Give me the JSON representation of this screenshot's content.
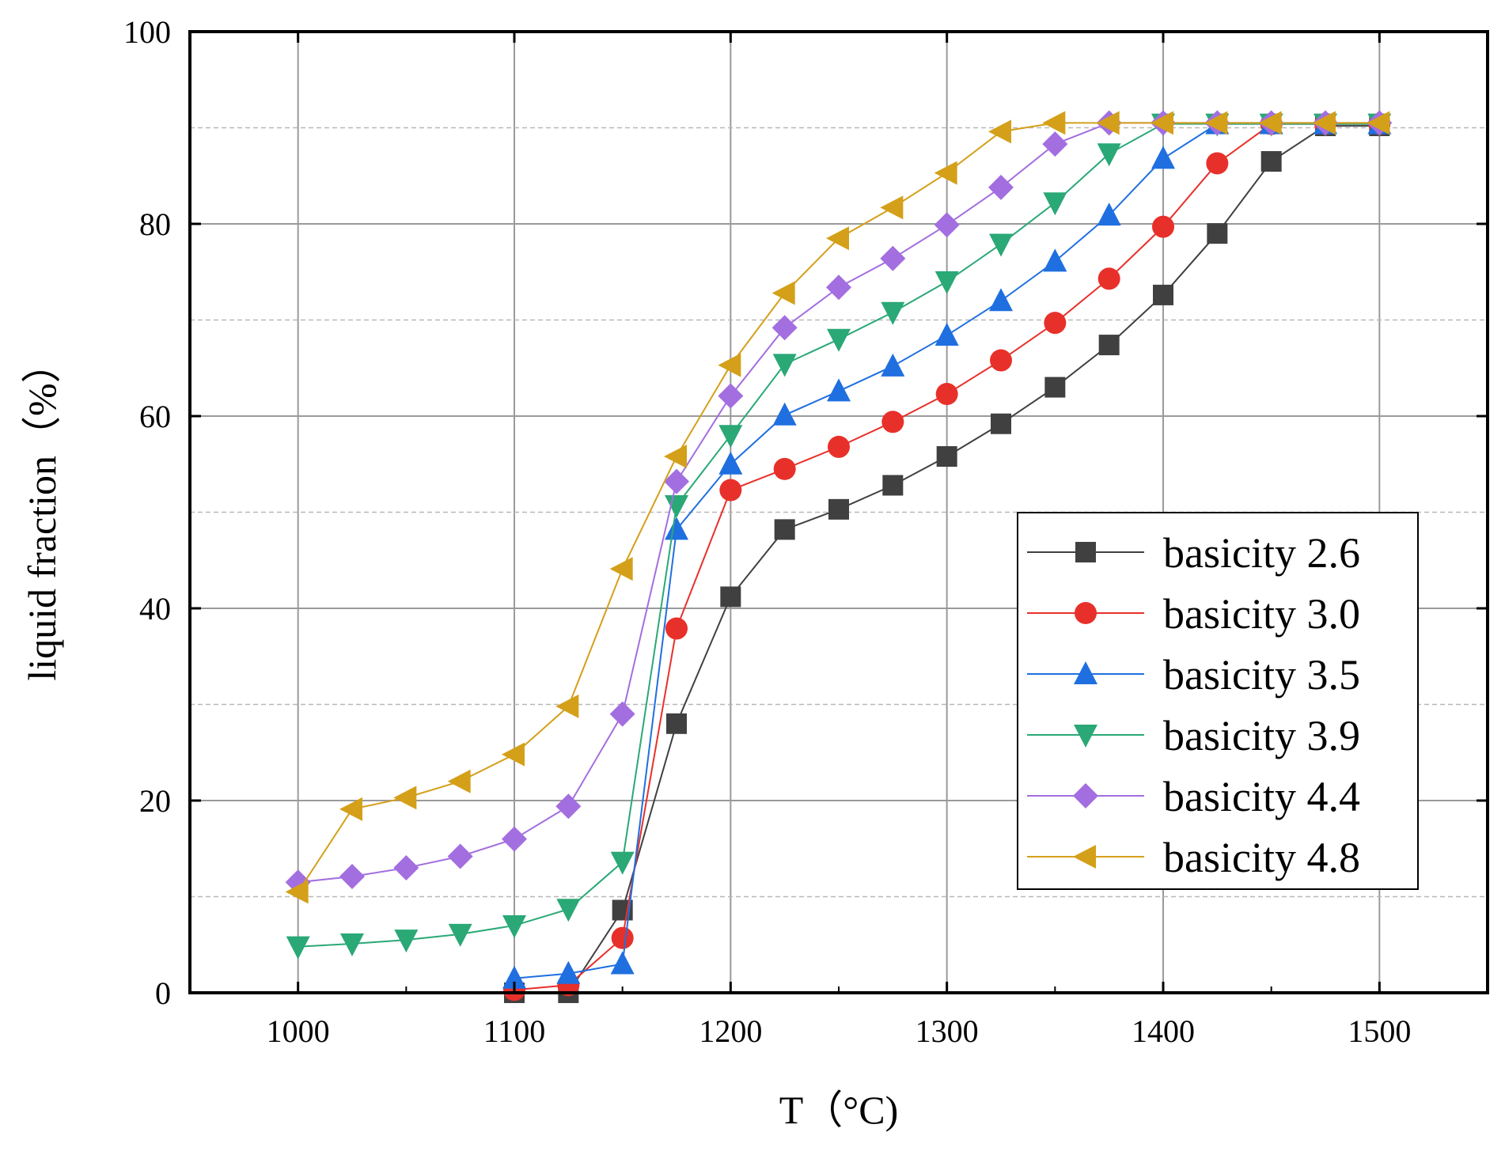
{
  "chart_data": {
    "type": "line",
    "title": "",
    "xlabel": "T（°C)",
    "ylabel": "liquid fraction（%）",
    "xlim": [
      950,
      1550
    ],
    "ylim": [
      0,
      100
    ],
    "xticks": [
      1000,
      1100,
      1200,
      1300,
      1400,
      1500
    ],
    "yticks": [
      0,
      20,
      40,
      60,
      80,
      100
    ],
    "x_tick_labels": [
      "1000",
      "1100",
      "1200",
      "1300",
      "1400",
      "1500"
    ],
    "y_tick_labels": [
      "0",
      "20",
      "40",
      "60",
      "80",
      "100"
    ],
    "grid": {
      "major": true,
      "minor_horizontal_dashed": true
    },
    "legend_position": "right-center",
    "series": [
      {
        "name": "basicity 2.6",
        "color": "#404040",
        "marker": "square",
        "x": [
          1100,
          1125,
          1150,
          1175,
          1200,
          1225,
          1250,
          1275,
          1300,
          1325,
          1350,
          1375,
          1400,
          1425,
          1450,
          1475,
          1500
        ],
        "y": [
          0.0,
          0.0,
          8.6,
          28.0,
          41.2,
          48.2,
          50.3,
          52.8,
          55.8,
          59.2,
          63.0,
          67.4,
          72.6,
          79.0,
          86.5,
          90.2,
          90.2
        ]
      },
      {
        "name": "basicity 3.0",
        "color": "#e8302a",
        "marker": "circle",
        "x": [
          1100,
          1125,
          1150,
          1175,
          1200,
          1225,
          1250,
          1275,
          1300,
          1325,
          1350,
          1375,
          1400,
          1425,
          1450,
          1475,
          1500
        ],
        "y": [
          0.3,
          0.8,
          5.7,
          37.9,
          52.3,
          54.5,
          56.8,
          59.4,
          62.3,
          65.8,
          69.7,
          74.3,
          79.7,
          86.3,
          90.4,
          90.4,
          90.4
        ]
      },
      {
        "name": "basicity 3.5",
        "color": "#1f6fe0",
        "marker": "triangle-up",
        "x": [
          1100,
          1125,
          1150,
          1175,
          1200,
          1225,
          1250,
          1275,
          1300,
          1325,
          1350,
          1375,
          1400,
          1425,
          1450,
          1475,
          1500
        ],
        "y": [
          1.5,
          2.0,
          3.0,
          48.2,
          55.0,
          60.1,
          62.6,
          65.2,
          68.4,
          72.0,
          76.1,
          80.9,
          86.8,
          90.4,
          90.4,
          90.4,
          90.4
        ]
      },
      {
        "name": "basicity 3.9",
        "color": "#2aa876",
        "marker": "triangle-down",
        "x": [
          1000,
          1025,
          1050,
          1075,
          1100,
          1125,
          1150,
          1175,
          1200,
          1225,
          1250,
          1275,
          1300,
          1325,
          1350,
          1375,
          1400,
          1425,
          1450,
          1475,
          1500
        ],
        "y": [
          4.8,
          5.1,
          5.5,
          6.1,
          7.0,
          8.7,
          13.6,
          50.7,
          58.0,
          65.4,
          68.0,
          70.8,
          74.0,
          77.9,
          82.2,
          87.3,
          90.4,
          90.4,
          90.4,
          90.4,
          90.4
        ]
      },
      {
        "name": "basicity 4.4",
        "color": "#a36ee0",
        "marker": "diamond",
        "x": [
          1000,
          1025,
          1050,
          1075,
          1100,
          1125,
          1150,
          1175,
          1200,
          1225,
          1250,
          1275,
          1300,
          1325,
          1350,
          1375,
          1400,
          1425,
          1450,
          1475,
          1500
        ],
        "y": [
          11.5,
          12.1,
          13.0,
          14.2,
          16.0,
          19.4,
          29.0,
          53.2,
          62.1,
          69.2,
          73.4,
          76.4,
          79.9,
          83.8,
          88.3,
          90.5,
          90.5,
          90.5,
          90.5,
          90.5,
          90.5
        ]
      },
      {
        "name": "basicity 4.8",
        "color": "#d4a01a",
        "marker": "triangle-left",
        "x": [
          1000,
          1025,
          1050,
          1075,
          1100,
          1125,
          1150,
          1175,
          1200,
          1225,
          1250,
          1275,
          1300,
          1325,
          1350,
          1375,
          1400,
          1425,
          1450,
          1475,
          1500
        ],
        "y": [
          10.5,
          19.1,
          20.3,
          22.0,
          24.8,
          29.8,
          44.1,
          55.8,
          65.3,
          72.8,
          78.5,
          81.7,
          85.3,
          89.6,
          90.5,
          90.5,
          90.5,
          90.5,
          90.5,
          90.5,
          90.5
        ]
      }
    ]
  }
}
